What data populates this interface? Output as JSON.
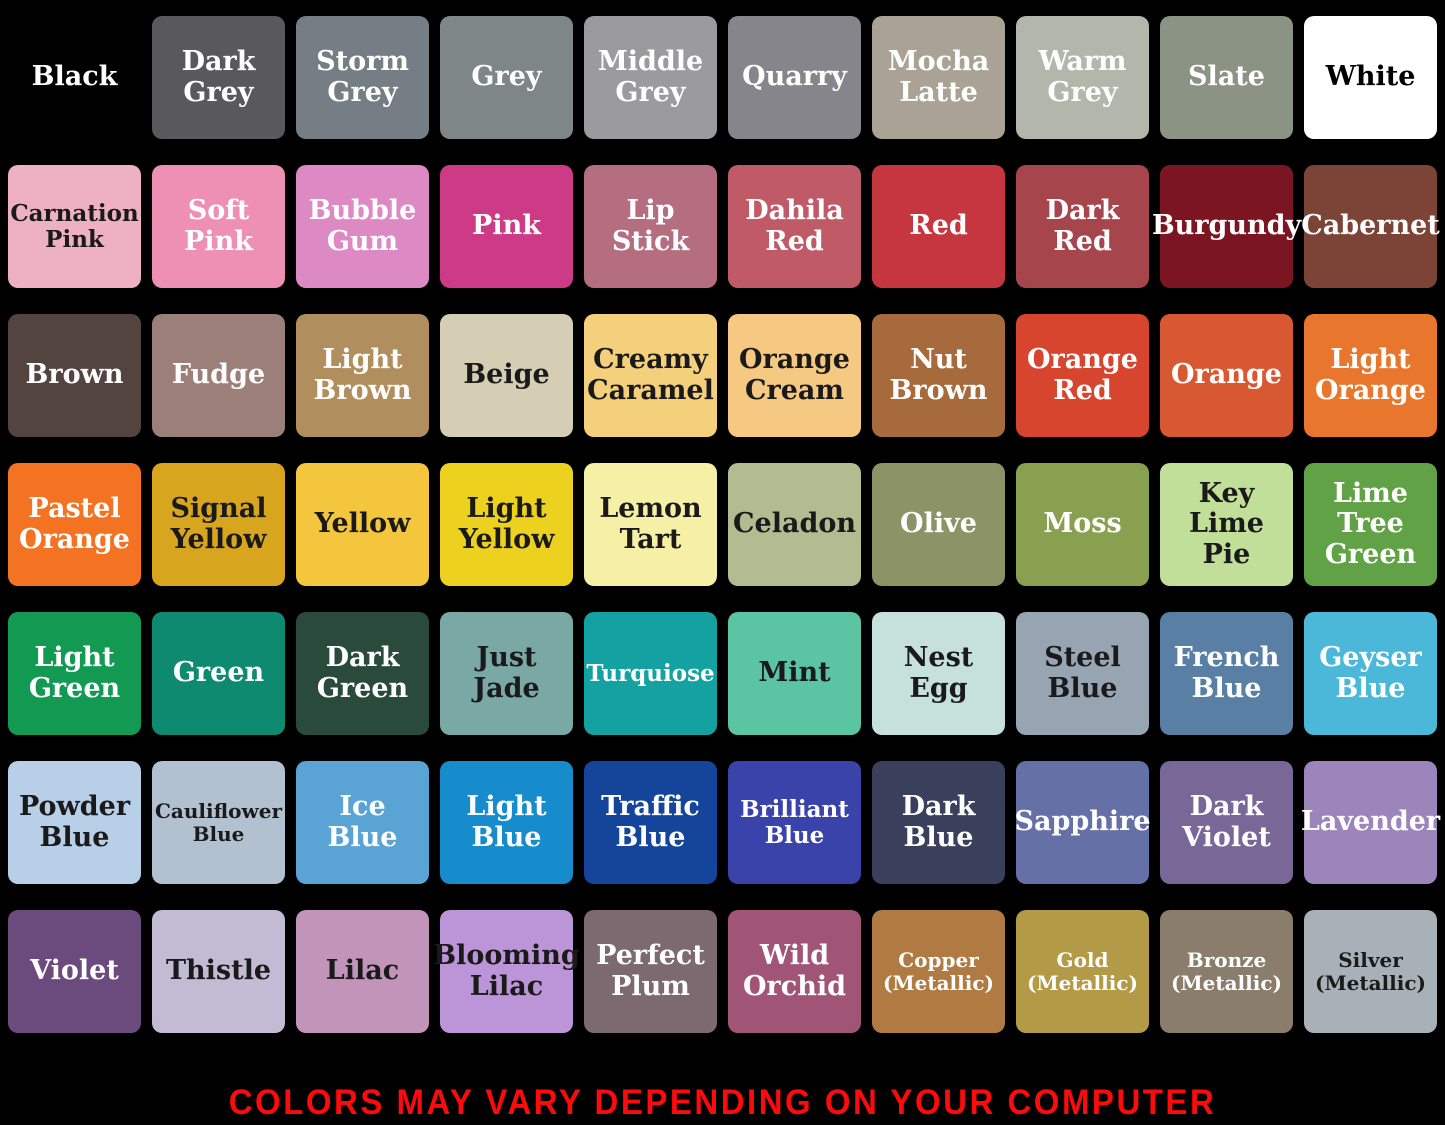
{
  "page": {
    "background": "#000000",
    "footer": {
      "text": "COLORS MAY VARY DEPENDING ON YOUR COMPUTER",
      "color": "#fb0b0b"
    }
  },
  "palette": {
    "rows": [
      [
        {
          "name": "Black",
          "hex": "#000000",
          "text_color": "#ffffff"
        },
        {
          "name": "Dark Grey",
          "hex": "#59585b",
          "text_color": "#ffffff"
        },
        {
          "name": "Storm Grey",
          "hex": "#757d85",
          "text_color": "#ffffff"
        },
        {
          "name": "Grey",
          "hex": "#7f8786",
          "text_color": "#ffffff"
        },
        {
          "name": "Middle Grey",
          "hex": "#9b9b9d",
          "text_color": "#ffffff"
        },
        {
          "name": "Quarry",
          "hex": "#86858b",
          "text_color": "#ffffff"
        },
        {
          "name": "Mocha Latte",
          "hex": "#aaa294",
          "text_color": "#ffffff"
        },
        {
          "name": "Warm Grey",
          "hex": "#b3b6ab",
          "text_color": "#ffffff"
        },
        {
          "name": "Slate",
          "hex": "#8b9484",
          "text_color": "#ffffff"
        },
        {
          "name": "White",
          "hex": "#ffffff",
          "text_color": "#000000"
        }
      ],
      [
        {
          "name": "Carnation Pink",
          "hex": "#eeb1c3",
          "text_color": "#1a1a1a"
        },
        {
          "name": "Soft Pink",
          "hex": "#ee8fb4",
          "text_color": "#ffffff"
        },
        {
          "name": "Bubble Gum",
          "hex": "#dd89c3",
          "text_color": "#ffffff"
        },
        {
          "name": "Pink",
          "hex": "#cd3a86",
          "text_color": "#ffffff"
        },
        {
          "name": "Lip Stick",
          "hex": "#b56d80",
          "text_color": "#ffffff"
        },
        {
          "name": "Dahila Red",
          "hex": "#c05a67",
          "text_color": "#ffffff"
        },
        {
          "name": "Red",
          "hex": "#c6363f",
          "text_color": "#ffffff"
        },
        {
          "name": "Dark Red",
          "hex": "#a6464c",
          "text_color": "#ffffff"
        },
        {
          "name": "Burgundy",
          "hex": "#7c1522",
          "text_color": "#ffffff"
        },
        {
          "name": "Cabernet",
          "hex": "#7c4437",
          "text_color": "#ffffff"
        }
      ],
      [
        {
          "name": "Brown",
          "hex": "#544440",
          "text_color": "#ffffff"
        },
        {
          "name": "Fudge",
          "hex": "#9b7f78",
          "text_color": "#ffffff"
        },
        {
          "name": "Light Brown",
          "hex": "#b18e5d",
          "text_color": "#ffffff"
        },
        {
          "name": "Beige",
          "hex": "#d5cdb4",
          "text_color": "#1a1a1a"
        },
        {
          "name": "Creamy Caramel",
          "hex": "#f4d07d",
          "text_color": "#1a1a1a"
        },
        {
          "name": "Orange Cream",
          "hex": "#f5c982",
          "text_color": "#1a1a1a"
        },
        {
          "name": "Nut Brown",
          "hex": "#a66a3d",
          "text_color": "#ffffff"
        },
        {
          "name": "Orange Red",
          "hex": "#d8452f",
          "text_color": "#ffffff"
        },
        {
          "name": "Orange",
          "hex": "#d85931",
          "text_color": "#ffffff"
        },
        {
          "name": "Light Orange",
          "hex": "#e8772d",
          "text_color": "#ffffff"
        }
      ],
      [
        {
          "name": "Pastel Orange",
          "hex": "#f37322",
          "text_color": "#ffffff"
        },
        {
          "name": "Signal Yellow",
          "hex": "#d8a51f",
          "text_color": "#1a1a1a"
        },
        {
          "name": "Yellow",
          "hex": "#f3c63d",
          "text_color": "#1a1a1a"
        },
        {
          "name": "Light Yellow",
          "hex": "#ecd21f",
          "text_color": "#1a1a1a"
        },
        {
          "name": "Lemon Tart",
          "hex": "#f5f0a5",
          "text_color": "#1a1a1a"
        },
        {
          "name": "Celadon",
          "hex": "#b3bc90",
          "text_color": "#1a1a1a"
        },
        {
          "name": "Olive",
          "hex": "#8c9366",
          "text_color": "#ffffff"
        },
        {
          "name": "Moss",
          "hex": "#89a051",
          "text_color": "#ffffff"
        },
        {
          "name": "Key Lime Pie",
          "hex": "#c1df99",
          "text_color": "#1a1a1a"
        },
        {
          "name": "Lime Tree Green",
          "hex": "#61a246",
          "text_color": "#ffffff"
        }
      ],
      [
        {
          "name": "Light Green",
          "hex": "#129a53",
          "text_color": "#ffffff"
        },
        {
          "name": "Green",
          "hex": "#0d8a6f",
          "text_color": "#ffffff"
        },
        {
          "name": "Dark Green",
          "hex": "#2a4a3b",
          "text_color": "#ffffff"
        },
        {
          "name": "Just Jade",
          "hex": "#7aa8a5",
          "text_color": "#1a1a1a"
        },
        {
          "name": "Turquiose",
          "hex": "#13a1a2",
          "text_color": "#ffffff"
        },
        {
          "name": "Mint",
          "hex": "#5bc4a3",
          "text_color": "#1a1a1a"
        },
        {
          "name": "Nest Egg",
          "hex": "#c5e1d9",
          "text_color": "#1a1a1a"
        },
        {
          "name": "Steel Blue",
          "hex": "#97a4b1",
          "text_color": "#1a1a1a"
        },
        {
          "name": "French Blue",
          "hex": "#5a7fa5",
          "text_color": "#ffffff"
        },
        {
          "name": "Geyser Blue",
          "hex": "#4cb8d9",
          "text_color": "#ffffff"
        }
      ],
      [
        {
          "name": "Powder Blue",
          "hex": "#b7d0e8",
          "text_color": "#1a1a1a"
        },
        {
          "name": "Cauliflower Blue",
          "hex": "#b2c1cf",
          "text_color": "#1a1a1a"
        },
        {
          "name": "Ice Blue",
          "hex": "#5aa3d5",
          "text_color": "#ffffff"
        },
        {
          "name": "Light Blue",
          "hex": "#178ccd",
          "text_color": "#ffffff"
        },
        {
          "name": "Traffic Blue",
          "hex": "#14459b",
          "text_color": "#ffffff"
        },
        {
          "name": "Brilliant Blue",
          "hex": "#3a43aa",
          "text_color": "#ffffff"
        },
        {
          "name": "Dark Blue",
          "hex": "#3a3f5b",
          "text_color": "#ffffff"
        },
        {
          "name": "Sapphire",
          "hex": "#6570a7",
          "text_color": "#ffffff"
        },
        {
          "name": "Dark Violet",
          "hex": "#796897",
          "text_color": "#ffffff"
        },
        {
          "name": "Lavender",
          "hex": "#9c85bb",
          "text_color": "#ffffff"
        }
      ],
      [
        {
          "name": "Violet",
          "hex": "#6b4a7d",
          "text_color": "#ffffff"
        },
        {
          "name": "Thistle",
          "hex": "#c2bbd3",
          "text_color": "#1a1a1a"
        },
        {
          "name": "Lilac",
          "hex": "#c394b9",
          "text_color": "#1a1a1a"
        },
        {
          "name": "Blooming Lilac",
          "hex": "#bb95d7",
          "text_color": "#1a1a1a"
        },
        {
          "name": "Perfect Plum",
          "hex": "#7d6a71",
          "text_color": "#ffffff"
        },
        {
          "name": "Wild Orchid",
          "hex": "#a05476",
          "text_color": "#ffffff"
        },
        {
          "name": "Copper (Metallic)",
          "hex": "#b07b42",
          "text_color": "#ffffff",
          "metallic": true,
          "sparkle": "#f0b860"
        },
        {
          "name": "Gold (Metallic)",
          "hex": "#b29a47",
          "text_color": "#ffffff",
          "metallic": true,
          "sparkle": "#ffe066"
        },
        {
          "name": "Bronze (Metallic)",
          "hex": "#8a7d6b",
          "text_color": "#ffffff",
          "metallic": true,
          "sparkle": "#d9a85f"
        },
        {
          "name": "Silver (Metallic)",
          "hex": "#a8b0b8",
          "text_color": "#1a1a1a",
          "metallic": true,
          "sparkle": "#eef3f6"
        }
      ]
    ]
  }
}
